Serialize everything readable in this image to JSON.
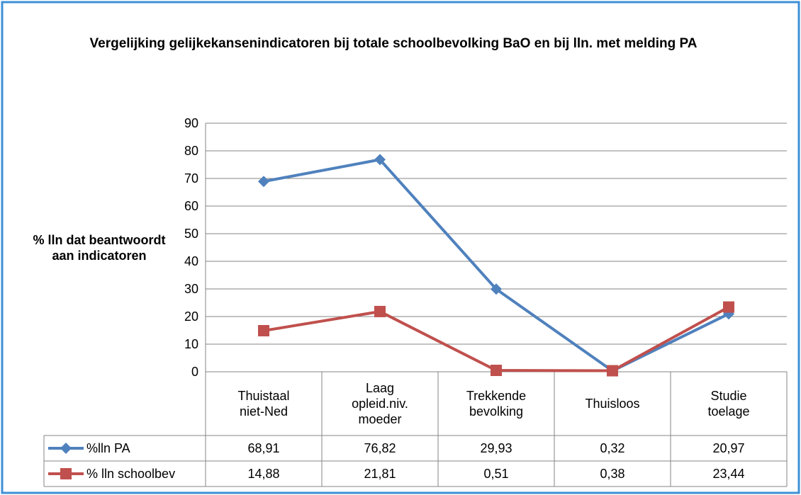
{
  "chart_data": {
    "type": "line",
    "title": "Vergelijking gelijkekansenindicatoren bij totale schoolbevolking BaO en bij lln. met melding PA",
    "y_label": "% lln dat beantwoordt aan indicatoren",
    "categories": [
      "Thuistaal niet-Ned",
      "Laag opleid.niv. moeder",
      "Trekkende bevolking",
      "Thuisloos",
      "Studie toelage"
    ],
    "series": [
      {
        "name": "%lln PA",
        "color": "#4f81bd",
        "marker": "diamond",
        "values": [
          68.91,
          76.82,
          29.93,
          0.32,
          20.97
        ],
        "value_labels": [
          "68,91",
          "76,82",
          "29,93",
          "0,32",
          "20,97"
        ]
      },
      {
        "name": "% lln schoolbev",
        "color": "#c0504d",
        "marker": "square",
        "values": [
          14.88,
          21.81,
          0.51,
          0.38,
          23.44
        ],
        "value_labels": [
          "14,88",
          "21,81",
          "0,51",
          "0,38",
          "23,44"
        ]
      }
    ],
    "ylim": [
      0,
      90
    ],
    "yticks": [
      0,
      10,
      20,
      30,
      40,
      50,
      60,
      70,
      80,
      90
    ],
    "grid": true
  }
}
